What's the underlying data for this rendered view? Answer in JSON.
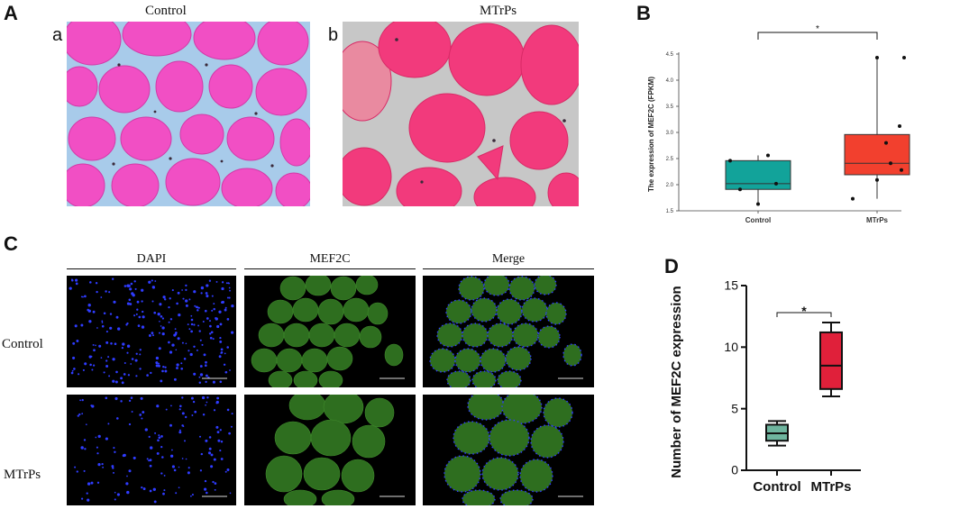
{
  "panel_A": {
    "letter": "A",
    "sub_a": {
      "letter": "a",
      "title": "Control"
    },
    "sub_b": {
      "letter": "b",
      "title": "MTrPs"
    }
  },
  "panel_B": {
    "letter": "B",
    "significance": "*",
    "colors": {
      "control": "#12a39a",
      "mtrps": "#f2402e"
    }
  },
  "panel_C": {
    "letter": "C",
    "column_headers": [
      "DAPI",
      "MEF2C",
      "Merge"
    ],
    "row_labels": [
      "Control",
      "MTrPs"
    ],
    "colors": {
      "dapi": "#2f3cff",
      "mef2c": "#2e6e1f"
    }
  },
  "panel_D": {
    "letter": "D",
    "significance": "*",
    "colors": {
      "control": "#6fb59f",
      "mtrps": "#e0203a"
    }
  },
  "chart_data": [
    {
      "type": "box",
      "panel": "B",
      "title": "",
      "xlabel": "",
      "ylabel": "The expression of MEF2C (FPKM)",
      "ylim": [
        1.5,
        4.5
      ],
      "yticks": [
        1.5,
        2.0,
        2.5,
        3.0,
        3.5,
        4.0,
        4.5
      ],
      "ytick_labels": [
        "1.5",
        "2.0",
        "2.5",
        "3.0",
        "3.5",
        "4.0",
        "4.5"
      ],
      "categories": [
        "Control",
        "MTrPs"
      ],
      "grid": false,
      "series": [
        {
          "min": 1.63,
          "q1": 1.91,
          "median": 2.02,
          "q3": 2.46,
          "max": 2.56,
          "points": [
            2.46,
            1.91,
            1.63,
            2.02,
            2.56
          ]
        },
        {
          "min": 1.73,
          "q1": 2.19,
          "median": 2.41,
          "q3": 2.96,
          "max": 4.43,
          "points": [
            2.41,
            2.09,
            1.73,
            3.12,
            2.8,
            2.28,
            4.43,
            4.43
          ]
        }
      ],
      "significance": "*"
    },
    {
      "type": "box",
      "panel": "D",
      "title": "",
      "xlabel": "",
      "ylabel": "Number of MEF2C expression",
      "ylim": [
        0,
        15
      ],
      "yticks": [
        0,
        5,
        10,
        15
      ],
      "ytick_labels": [
        "0",
        "5",
        "10",
        "15"
      ],
      "categories": [
        "Control",
        "MTrPs"
      ],
      "grid": false,
      "series": [
        {
          "min": 2.0,
          "q1": 2.4,
          "median": 3.0,
          "q3": 3.7,
          "max": 4.0
        },
        {
          "min": 6.0,
          "q1": 6.6,
          "median": 8.5,
          "q3": 11.2,
          "max": 12.0
        }
      ],
      "significance": "*"
    }
  ]
}
